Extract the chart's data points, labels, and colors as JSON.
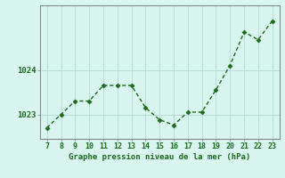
{
  "x": [
    7,
    8,
    9,
    10,
    11,
    12,
    13,
    14,
    15,
    16,
    17,
    18,
    19,
    20,
    21,
    22,
    23
  ],
  "y": [
    1022.7,
    1023.0,
    1023.3,
    1023.3,
    1023.65,
    1023.65,
    1023.65,
    1023.15,
    1022.88,
    1022.76,
    1023.05,
    1023.05,
    1023.55,
    1024.1,
    1024.85,
    1024.68,
    1025.1
  ],
  "line_color": "#1a6b1a",
  "marker": "D",
  "marker_size": 2.5,
  "bg_color": "#d8f5f0",
  "grid_color": "#b8ddd6",
  "xlabel": "Graphe pression niveau de la mer (hPa)",
  "xlabel_color": "#1a6b1a",
  "ytick_labels": [
    "1023",
    "1024"
  ],
  "ytick_values": [
    1023,
    1024
  ],
  "ylim": [
    1022.45,
    1025.45
  ],
  "xlim": [
    6.5,
    23.5
  ],
  "xtick_values": [
    7,
    8,
    9,
    10,
    11,
    12,
    13,
    14,
    15,
    16,
    17,
    18,
    19,
    20,
    21,
    22,
    23
  ],
  "spine_color": "#888888",
  "lw": 1.0
}
